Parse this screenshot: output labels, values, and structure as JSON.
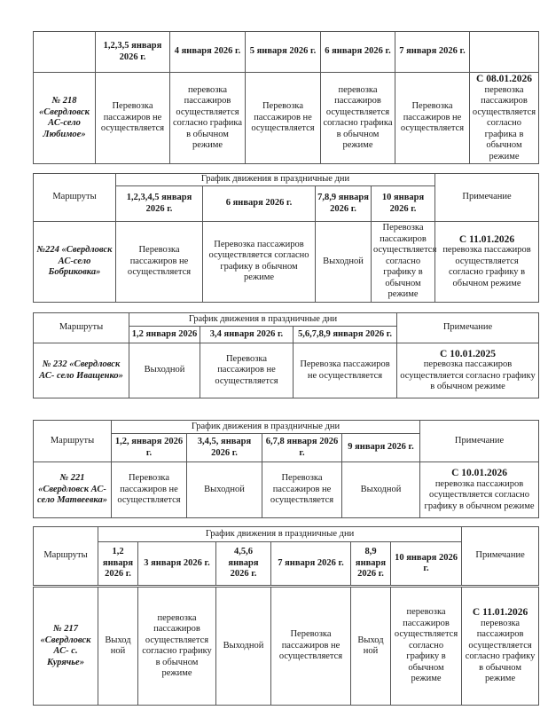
{
  "tables": [
    {
      "route_header": "",
      "group_header": "",
      "note_header": "",
      "columns": [
        "1,2,3,5 января 2026 г.",
        "4 января 2026 г.",
        "5 января 2026 г.",
        "6 января 2026 г.",
        "7 января 2026 г."
      ],
      "route": "№ 218 «Свердловск АС-село Любимое»",
      "cells": [
        "Перевозка пассажиров не осуществляется",
        "перевозка пассажиров осуществляется согласно графика в обычном режиме",
        "Перевозка пассажиров не осуществляется",
        "перевозка пассажиров осуществляется согласно графика в обычном режиме",
        "Перевозка пассажиров не осуществляется"
      ],
      "note": {
        "date": "С 08.01.2026",
        "text": "перевозка пассажиров осуществляется согласно графика в обычном режиме"
      }
    },
    {
      "route_header": "Маршруты",
      "group_header": "График движения в праздничные дни",
      "note_header": "Примечание",
      "columns": [
        "1,2,3,4,5 января 2026 г.",
        "6 января 2026 г.",
        "7,8,9 января 2026 г.",
        "10 января 2026 г."
      ],
      "route": "№224 «Свердловск АС-село Бобриковка»",
      "cells": [
        "Перевозка пассажиров не осуществляется",
        "Перевозка пассажиров осуществляется согласно графику в обычном режиме",
        "Выходной",
        "Перевозка пассажиров осуществляется согласно графику в обычном режиме"
      ],
      "note": {
        "date": "С 11.01.2026",
        "text": "перевозка пассажиров осуществляется согласно графику в обычном режиме"
      }
    },
    {
      "route_header": "Маршруты",
      "group_header": "График движения в праздничные дни",
      "note_header": "Примечание",
      "columns": [
        "1,2 января 2026",
        "3,4 января 2026 г.",
        "5,6,7,8,9 января 2026 г."
      ],
      "route": "№ 232 «Свердловск АС- село Иващенко»",
      "cells": [
        "Выходной",
        "Перевозка пассажиров не осуществляется",
        "Перевозка пассажиров не осуществляется"
      ],
      "note": {
        "date": "С 10.01.2025",
        "text": "перевозка пассажиров осуществляется согласно графику в обычном режиме"
      }
    },
    {
      "route_header": "Маршруты",
      "group_header": "График движения в праздничные дни",
      "note_header": "Примечание",
      "columns": [
        "1,2, января 2026 г.",
        "3,4,5, января 2026 г.",
        "6,7,8 января 2026 г.",
        "9 января 2026 г."
      ],
      "route": "№ 221 «Свердловск АС-село Матвеевка»",
      "cells": [
        "Перевозка пассажиров не осуществляется",
        "Выходной",
        "Перевозка пассажиров не осуществляется",
        "Выходной"
      ],
      "note": {
        "date": "С 10.01.2026",
        "text": "перевозка пассажиров осуществляется согласно графику в обычном режиме"
      }
    },
    {
      "route_header": "Маршруты",
      "group_header": "График движения в праздничные дни",
      "note_header": "Примечание",
      "columns": [
        "1,2 января 2026 г.",
        "3 января 2026 г.",
        "4,5,6 января 2026 г.",
        "7 января 2026 г.",
        "8,9 января 2026 г.",
        "10 января 2026 г."
      ],
      "route": "№ 217 «Свердловск АС- с. Курячье»",
      "cells": [
        "Выход ной",
        "перевозка пассажиров осуществляется согласно графику в обычном режиме",
        "Выходной",
        "Перевозка пассажиров не осуществляется",
        "Выход ной",
        "перевозка пассажиров осуществляется согласно графику в обычном режиме"
      ],
      "note": {
        "date": "С 11.01.2026",
        "text": "перевозка пассажиров осуществляется согласно графику в обычном режиме"
      }
    }
  ]
}
